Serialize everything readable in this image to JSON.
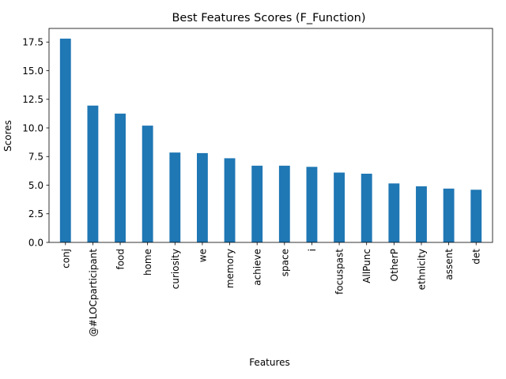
{
  "chart_data": {
    "type": "bar",
    "title": "Best Features Scores (F_Function)",
    "xlabel": "Features",
    "ylabel": "Scores",
    "categories": [
      "conj",
      "@#LOCparticipant",
      "food",
      "home",
      "curiosity",
      "we",
      "memory",
      "achieve",
      "space",
      "i",
      "focuspast",
      "AllPunc",
      "OtherP",
      "ethnicity",
      "assent",
      "det"
    ],
    "values": [
      17.8,
      11.95,
      11.25,
      10.2,
      7.85,
      7.8,
      7.35,
      6.7,
      6.7,
      6.6,
      6.1,
      6.0,
      5.15,
      4.9,
      4.7,
      4.6
    ],
    "yticks": [
      "0.0",
      "2.5",
      "5.0",
      "7.5",
      "10.0",
      "12.5",
      "15.0",
      "17.5"
    ],
    "ylim": [
      0,
      18.69
    ],
    "bar_color": "#1f77b4",
    "grid": false,
    "legend": "none"
  }
}
